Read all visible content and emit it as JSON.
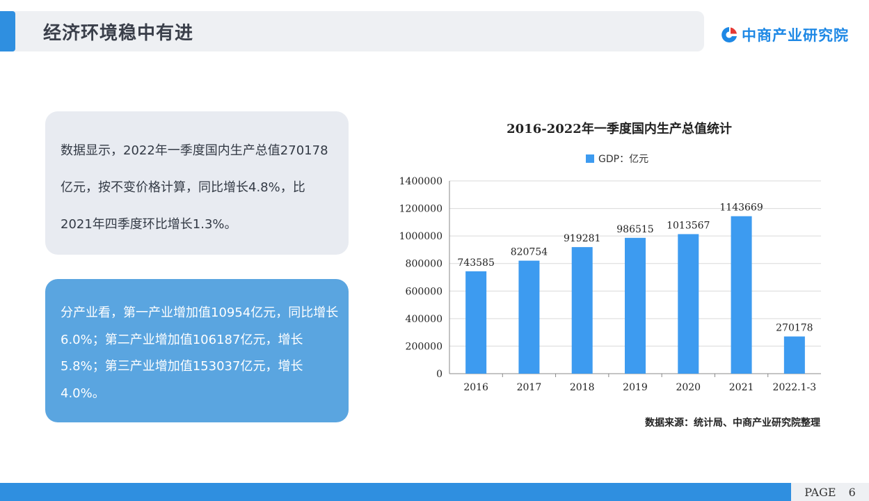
{
  "header": {
    "title": "经济环境稳中有进"
  },
  "logo": {
    "text": "中商产业研究院",
    "icon": "company-logo-icon",
    "color": "#1e88e5"
  },
  "box1": {
    "text": "数据显示，2022年一季度国内生产总值270178亿元，按不变价格计算，同比增长4.8%，比2021年四季度环比增长1.3%。"
  },
  "box2": {
    "text": "分产业看，第一产业增加值10954亿元，同比增长6.0%；第二产业增加值106187亿元，增长5.8%；第三产业增加值153037亿元，增长4.0%。"
  },
  "source": "数据来源：统计局、中商产业研究院整理",
  "footer": {
    "page_label": "PAGE",
    "page_number": "6"
  },
  "colors": {
    "accent": "#2f8fe0",
    "bar": "#3d9bf0"
  },
  "chart_data": {
    "type": "bar",
    "title": "2016-2022年一季度国内生产总值统计",
    "categories": [
      "2016",
      "2017",
      "2018",
      "2019",
      "2020",
      "2021",
      "2022.1-3"
    ],
    "series": [
      {
        "name": "GDP：亿元",
        "values": [
          743585,
          820754,
          919281,
          986515,
          1013567,
          1143669,
          270178
        ]
      }
    ],
    "data_labels": [
      "743585",
      "820754",
      "919281",
      "986515",
      "1013567",
      "1143669",
      "270178"
    ],
    "ylim": [
      0,
      1400000
    ],
    "yticks": [
      0,
      200000,
      400000,
      600000,
      800000,
      1000000,
      1200000,
      1400000
    ],
    "ytick_labels": [
      "0",
      "200000",
      "400000",
      "600000",
      "800000",
      "1000000",
      "1200000",
      "1400000"
    ],
    "xlabel": "",
    "ylabel": "",
    "grid": true,
    "legend": "top"
  }
}
